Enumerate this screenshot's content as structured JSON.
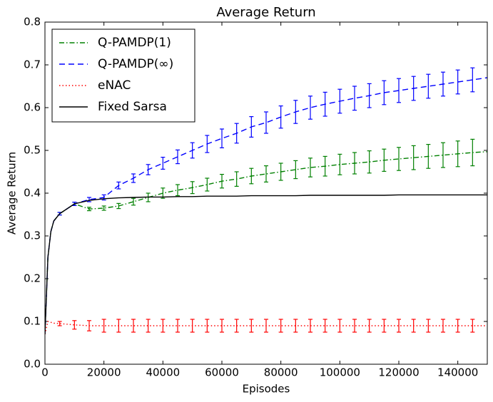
{
  "chart_data": {
    "type": "line",
    "title": "Average Return",
    "xlabel": "Episodes",
    "ylabel": "Average Return",
    "x": [
      0,
      1000,
      2000,
      3000,
      5000,
      10000,
      15000,
      20000,
      25000,
      30000,
      35000,
      40000,
      45000,
      50000,
      55000,
      60000,
      65000,
      70000,
      75000,
      80000,
      85000,
      90000,
      95000,
      100000,
      105000,
      110000,
      115000,
      120000,
      125000,
      130000,
      135000,
      140000,
      145000,
      150000
    ],
    "xlim": [
      0,
      150000
    ],
    "xticks": [
      0,
      20000,
      40000,
      60000,
      80000,
      100000,
      120000,
      140000
    ],
    "ylim": [
      0,
      0.8
    ],
    "yticks": [
      {
        "value": 0,
        "label": "0.0"
      },
      0.1,
      0.2,
      0.3,
      0.4,
      0.5,
      0.6,
      0.7,
      0.8
    ],
    "legend": "upper left",
    "series": [
      {
        "name": "Q-PAMDP(1)",
        "color": "#008000",
        "dash": "-.",
        "values": [
          0.07,
          0.25,
          0.31,
          0.335,
          0.352,
          0.375,
          0.363,
          0.365,
          0.37,
          0.38,
          0.39,
          0.4,
          0.407,
          0.413,
          0.42,
          0.428,
          0.433,
          0.44,
          0.445,
          0.45,
          0.455,
          0.46,
          0.463,
          0.467,
          0.47,
          0.473,
          0.477,
          0.48,
          0.483,
          0.486,
          0.489,
          0.492,
          0.495,
          0.497
        ],
        "errors": [
          null,
          null,
          null,
          null,
          0.003,
          0.004,
          0.004,
          0.005,
          0.006,
          0.008,
          0.01,
          0.012,
          0.013,
          0.014,
          0.015,
          0.016,
          0.017,
          0.018,
          0.019,
          0.02,
          0.021,
          0.022,
          0.023,
          0.024,
          0.025,
          0.026,
          0.026,
          0.027,
          0.028,
          0.028,
          0.029,
          0.03,
          0.031,
          null
        ]
      },
      {
        "name": "Q-PAMDP(∞)",
        "color": "#0000ff",
        "dash": "--",
        "values": [
          0.07,
          0.25,
          0.31,
          0.335,
          0.352,
          0.375,
          0.385,
          0.39,
          0.418,
          0.435,
          0.455,
          0.47,
          0.485,
          0.5,
          0.515,
          0.528,
          0.54,
          0.555,
          0.565,
          0.578,
          0.59,
          0.6,
          0.608,
          0.615,
          0.622,
          0.628,
          0.635,
          0.64,
          0.645,
          0.65,
          0.655,
          0.66,
          0.665,
          0.67
        ],
        "errors": [
          null,
          null,
          null,
          null,
          0.003,
          0.004,
          0.005,
          0.006,
          0.008,
          0.01,
          0.012,
          0.014,
          0.016,
          0.018,
          0.02,
          0.022,
          0.023,
          0.024,
          0.025,
          0.026,
          0.027,
          0.027,
          0.028,
          0.028,
          0.028,
          0.028,
          0.028,
          0.028,
          0.028,
          0.028,
          0.028,
          0.028,
          0.028,
          null
        ]
      },
      {
        "name": "eNAC",
        "color": "#ff0000",
        "dash": ":",
        "values": [
          0.07,
          0.1,
          0.098,
          0.096,
          0.095,
          0.092,
          0.09,
          0.09,
          0.09,
          0.09,
          0.09,
          0.09,
          0.09,
          0.09,
          0.09,
          0.09,
          0.09,
          0.09,
          0.09,
          0.09,
          0.09,
          0.09,
          0.09,
          0.09,
          0.09,
          0.09,
          0.09,
          0.09,
          0.09,
          0.09,
          0.09,
          0.09,
          0.09,
          0.09
        ],
        "errors": [
          null,
          null,
          null,
          null,
          0.005,
          0.01,
          0.012,
          0.015,
          0.015,
          0.015,
          0.015,
          0.015,
          0.015,
          0.015,
          0.015,
          0.015,
          0.015,
          0.015,
          0.015,
          0.015,
          0.015,
          0.015,
          0.015,
          0.015,
          0.015,
          0.015,
          0.015,
          0.015,
          0.015,
          0.015,
          0.015,
          0.015,
          0.015,
          null
        ]
      },
      {
        "name": "Fixed Sarsa",
        "color": "#000000",
        "dash": "-",
        "values": [
          0.07,
          0.25,
          0.31,
          0.335,
          0.352,
          0.375,
          0.383,
          0.387,
          0.389,
          0.39,
          0.391,
          0.391,
          0.392,
          0.392,
          0.393,
          0.393,
          0.393,
          0.394,
          0.394,
          0.394,
          0.394,
          0.395,
          0.395,
          0.395,
          0.395,
          0.395,
          0.395,
          0.396,
          0.396,
          0.396,
          0.396,
          0.396,
          0.396,
          0.396
        ]
      }
    ]
  }
}
